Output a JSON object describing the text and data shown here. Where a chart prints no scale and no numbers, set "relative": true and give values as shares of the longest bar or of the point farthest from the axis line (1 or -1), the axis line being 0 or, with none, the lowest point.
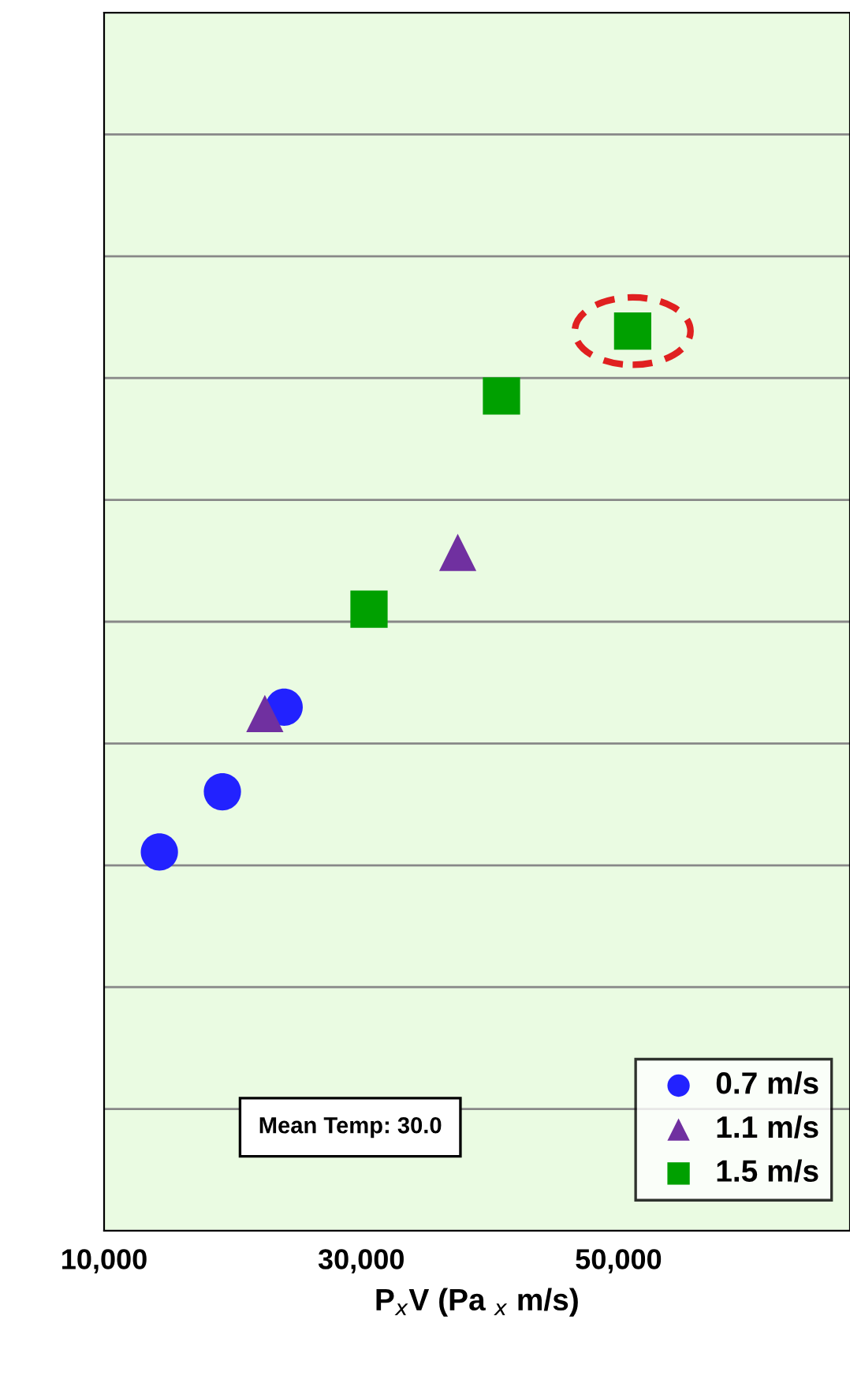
{
  "chart_data": {
    "type": "scatter",
    "relative": true,
    "xlabel": "P$_{x}$V (Pa $_{x}$ m/s)",
    "xlim": [
      10000,
      68000
    ],
    "xticks": [
      {
        "value": 10000,
        "label": "10,000"
      },
      {
        "value": 30000,
        "label": "30,000"
      },
      {
        "value": 50000,
        "label": "50,000"
      }
    ],
    "grid": "y",
    "legend": "bottom right",
    "annotations": [
      "Mean Temp: 30.0"
    ],
    "series": [
      {
        "name": "0.7 m/s",
        "color": "#2222ff",
        "marker": "circle",
        "x": [
          14300,
          19200,
          24000
        ],
        "values": [
          0.421,
          0.488,
          0.582
        ]
      },
      {
        "name": "1.1 m/s",
        "color": "#7030a0",
        "marker": "triangle",
        "x": [
          22500,
          29600,
          37500
        ],
        "values": [
          0.575,
          null,
          0.754
        ]
      },
      {
        "name": "1.5 m/s",
        "color": "#00a000",
        "marker": "square",
        "x": [
          30600,
          40900,
          51100
        ],
        "values": [
          0.691,
          0.928,
          1.0
        ]
      }
    ]
  }
}
